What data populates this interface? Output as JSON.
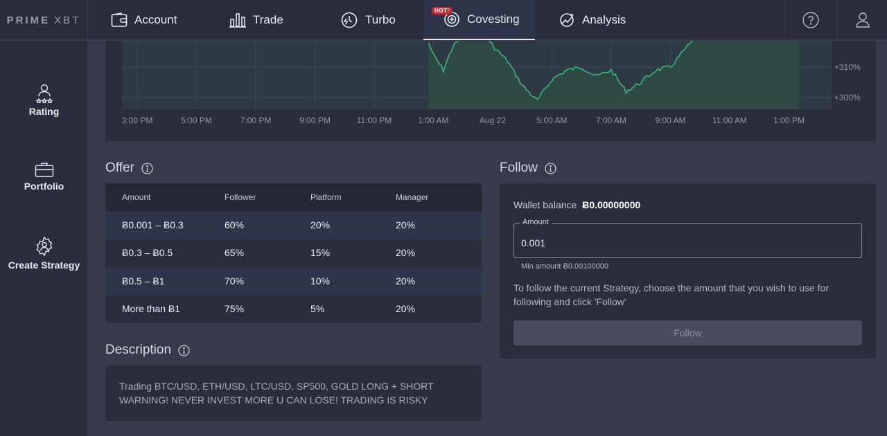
{
  "brand": {
    "logo_bold": "PRIME",
    "logo_light": "XBT"
  },
  "nav": {
    "items": [
      {
        "label": "Account",
        "icon": "wallet-icon"
      },
      {
        "label": "Trade",
        "icon": "bar-chart-icon"
      },
      {
        "label": "Turbo",
        "icon": "timer-icon"
      },
      {
        "label": "Covesting",
        "icon": "covesting-icon",
        "badge": "HOT!",
        "active": true
      },
      {
        "label": "Analysis",
        "icon": "analysis-icon"
      }
    ],
    "right_icons": [
      "help-icon",
      "user-icon"
    ]
  },
  "sidebar": {
    "items": [
      {
        "label": "Rating",
        "icon": "rating-icon"
      },
      {
        "label": "Portfolio",
        "icon": "briefcase-icon"
      },
      {
        "label": "Create Strategy",
        "icon": "gear-user-icon"
      }
    ]
  },
  "chart_data": {
    "type": "area",
    "x_ticks": [
      "3:00 PM",
      "5:00 PM",
      "7:00 PM",
      "9:00 PM",
      "11:00 PM",
      "1:00 AM",
      "Aug 22",
      "5:00 AM",
      "7:00 AM",
      "9:00 AM",
      "11:00 AM",
      "1:00 PM"
    ],
    "y_ticks": [
      "+310%",
      "+300%"
    ],
    "series": [
      {
        "values": [
          {
            "x": "12:50 AM",
            "y": 318
          },
          {
            "x": "1:00 AM",
            "y": 314
          },
          {
            "x": "1:20 AM",
            "y": 309
          },
          {
            "x": "1:40 AM",
            "y": 317
          },
          {
            "x": "2:00 AM",
            "y": 320
          },
          {
            "x": "2:40 AM",
            "y": 322
          },
          {
            "x": "3:00 AM",
            "y": 317
          },
          {
            "x": "3:30 AM",
            "y": 312
          },
          {
            "x": "4:00 AM",
            "y": 304
          },
          {
            "x": "4:30 AM",
            "y": 299
          },
          {
            "x": "5:00 AM",
            "y": 306
          },
          {
            "x": "5:30 AM",
            "y": 309
          },
          {
            "x": "6:00 AM",
            "y": 310
          },
          {
            "x": "6:30 AM",
            "y": 307
          },
          {
            "x": "7:00 AM",
            "y": 309
          },
          {
            "x": "7:30 AM",
            "y": 302
          },
          {
            "x": "8:00 AM",
            "y": 305
          },
          {
            "x": "8:30 AM",
            "y": 309
          },
          {
            "x": "9:00 AM",
            "y": 310
          },
          {
            "x": "9:30 AM",
            "y": 316
          },
          {
            "x": "10:00 AM",
            "y": 321
          },
          {
            "x": "10:30 AM",
            "y": 320
          },
          {
            "x": "11:00 AM",
            "y": 321
          },
          {
            "x": "11:30 AM",
            "y": 321
          },
          {
            "x": "12:00 PM",
            "y": 322
          },
          {
            "x": "12:40 PM",
            "y": 320
          },
          {
            "x": "1:00 PM",
            "y": 322
          },
          {
            "x": "1:20 PM",
            "y": 321
          }
        ]
      }
    ],
    "line_color": "#3fb37a"
  },
  "offer": {
    "title": "Offer",
    "columns": [
      "Amount",
      "Follower",
      "Platform",
      "Manager"
    ],
    "rows": [
      [
        "Ƀ0.001 – Ƀ0.3",
        "60%",
        "20%",
        "20%"
      ],
      [
        "Ƀ0.3 – Ƀ0.5",
        "65%",
        "15%",
        "20%"
      ],
      [
        "Ƀ0.5 – Ƀ1",
        "70%",
        "10%",
        "20%"
      ],
      [
        "More than Ƀ1",
        "75%",
        "5%",
        "20%"
      ]
    ]
  },
  "description": {
    "title": "Description",
    "text": "Trading BTC/USD, ETH/USD, LTC/USD, SP500, GOLD LONG + SHORT WARNING! NEVER INVEST MORE U CAN LOSE! TRADING IS RISKY"
  },
  "follow": {
    "title": "Follow",
    "wallet_label": "Wallet balance",
    "wallet_value": "Ƀ0.00000000",
    "amount_label": "Amount",
    "amount_value": "0.001",
    "min_amount": "Min amount Ƀ0.00100000",
    "help_text": "To follow the current Strategy, choose the amount that you wish to use for following and click 'Follow'",
    "button_label": "Follow"
  }
}
